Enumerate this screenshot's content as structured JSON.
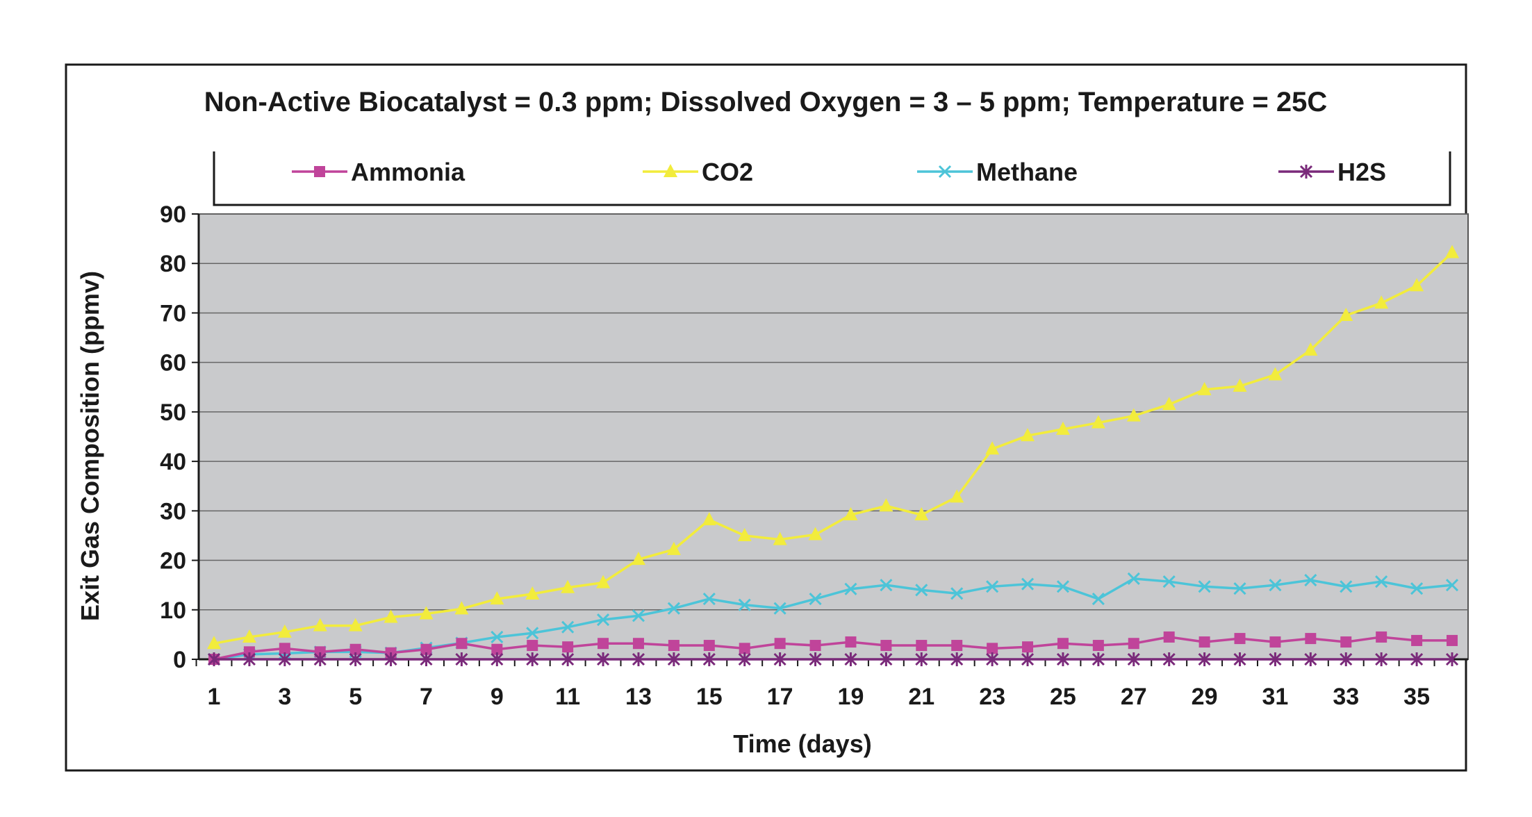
{
  "chart_data": {
    "type": "line",
    "title": "Non-Active Biocatalyst = 0.3 ppm; Dissolved Oxygen = 3 – 5 ppm; Temperature = 25C",
    "xlabel": "Time (days)",
    "ylabel": "Exit Gas Composition (ppmv)",
    "x": [
      1,
      2,
      3,
      4,
      5,
      6,
      7,
      8,
      9,
      10,
      11,
      12,
      13,
      14,
      15,
      16,
      17,
      18,
      19,
      20,
      21,
      22,
      23,
      24,
      25,
      26,
      27,
      28,
      29,
      30,
      31,
      32,
      33,
      34,
      35,
      36
    ],
    "xlim": [
      1,
      36
    ],
    "x_tick_labels": [
      "1",
      "3",
      "5",
      "7",
      "9",
      "11",
      "13",
      "15",
      "17",
      "19",
      "21",
      "23",
      "25",
      "27",
      "29",
      "31",
      "33",
      "35"
    ],
    "ylim": [
      0,
      90
    ],
    "y_tick_labels": [
      "0",
      "10",
      "20",
      "30",
      "40",
      "50",
      "60",
      "70",
      "80",
      "90"
    ],
    "grid": "horizontal",
    "legend_position": "top",
    "background_color": "#c9cacc",
    "series": [
      {
        "name": "Ammonia",
        "marker": "square",
        "color": "#c0449a",
        "values": [
          0,
          1.5,
          2.2,
          1.5,
          2.0,
          1.3,
          2.0,
          3.2,
          2.0,
          2.8,
          2.5,
          3.2,
          3.2,
          2.8,
          2.8,
          2.2,
          3.2,
          2.8,
          3.5,
          2.8,
          2.8,
          2.8,
          2.2,
          2.5,
          3.2,
          2.8,
          3.2,
          4.5,
          3.5,
          4.2,
          3.5,
          4.2,
          3.5,
          4.5,
          3.8,
          3.8
        ]
      },
      {
        "name": "CO2",
        "marker": "triangle",
        "color": "#f2ec3c",
        "values": [
          3.2,
          4.5,
          5.5,
          6.8,
          6.8,
          8.5,
          9.2,
          10.2,
          12.2,
          13.2,
          14.5,
          15.5,
          20.2,
          22.2,
          28.2,
          25.0,
          24.2,
          25.2,
          29.2,
          31.0,
          29.2,
          32.8,
          42.5,
          45.2,
          46.5,
          47.8,
          49.2,
          51.5,
          54.5,
          55.2,
          57.5,
          62.5,
          69.5,
          72.0,
          75.5,
          82.2
        ]
      },
      {
        "name": "Methane",
        "marker": "x",
        "color": "#4cc4d8",
        "values": [
          0,
          1.0,
          1.2,
          1.5,
          1.5,
          1.3,
          2.3,
          3.3,
          4.5,
          5.3,
          6.5,
          8.0,
          8.8,
          10.3,
          12.2,
          11.0,
          10.3,
          12.2,
          14.2,
          15.0,
          14.0,
          13.3,
          14.7,
          15.2,
          14.7,
          12.2,
          16.3,
          15.7,
          14.7,
          14.3,
          15.0,
          16.0,
          14.7,
          15.7,
          14.3,
          15.0
        ]
      },
      {
        "name": "H2S",
        "marker": "star",
        "color": "#7a2a7a",
        "values": [
          0,
          0,
          0,
          0,
          0,
          0,
          0,
          0,
          0,
          0,
          0,
          0,
          0,
          0,
          0,
          0,
          0,
          0,
          0,
          0,
          0,
          0,
          0,
          0,
          0,
          0,
          0,
          0,
          0,
          0,
          0,
          0,
          0,
          0,
          0,
          0
        ]
      }
    ]
  }
}
